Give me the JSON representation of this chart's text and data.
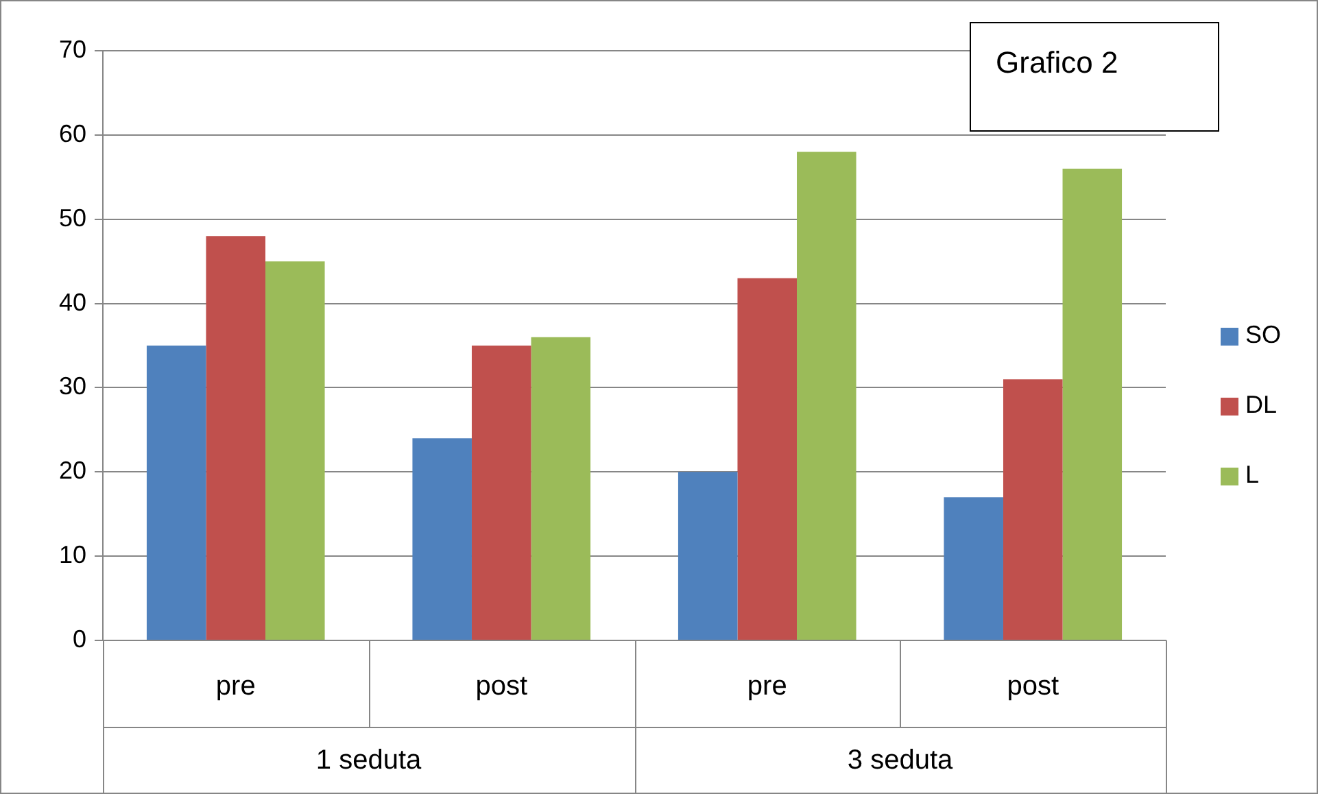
{
  "chart_data": {
    "type": "bar",
    "title": "Grafico 2",
    "categories": [
      "pre",
      "post",
      "pre",
      "post"
    ],
    "series": [
      {
        "name": "SO",
        "color": "#4f81bd",
        "values": [
          35,
          24,
          20,
          17
        ]
      },
      {
        "name": "DL",
        "color": "#c0504d",
        "values": [
          48,
          35,
          43,
          31
        ]
      },
      {
        "name": "L",
        "color": "#9bbb59",
        "values": [
          45,
          36,
          58,
          56
        ]
      }
    ],
    "annotations": [
      "1 seduta",
      "3 seduta"
    ],
    "ylim": [
      0,
      70
    ],
    "yticks": [
      0,
      10,
      20,
      30,
      40,
      50,
      60,
      70
    ],
    "grid": "y",
    "legend": "right"
  }
}
